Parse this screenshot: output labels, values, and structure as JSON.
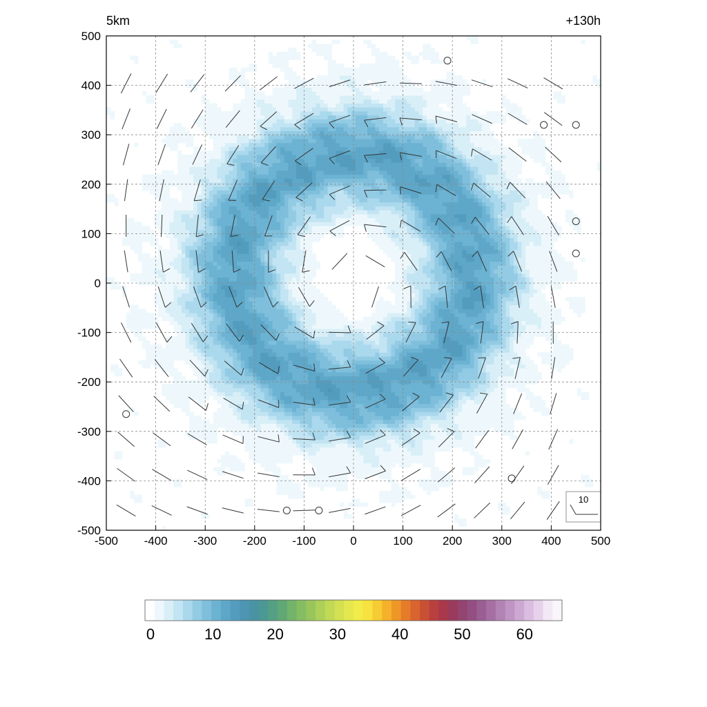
{
  "chart_data": {
    "type": "heatmap",
    "title_left": "5km",
    "title_right": "+130h",
    "xlim": [
      -500,
      500
    ],
    "ylim": [
      -500,
      500
    ],
    "x_ticks": [
      -500,
      -400,
      -300,
      -200,
      -100,
      0,
      100,
      200,
      300,
      400,
      500
    ],
    "y_ticks": [
      -500,
      -400,
      -300,
      -200,
      -100,
      0,
      100,
      200,
      300,
      400,
      500
    ],
    "grid": true,
    "field": {
      "description_type": "annular ring",
      "center": [
        0,
        20
      ],
      "ring_radius": 240,
      "ring_width": 130,
      "peak_value": 13,
      "eye_value": 0
    },
    "wind_barbs": {
      "spacing": 72,
      "reference_value": 10,
      "reference_label": "10"
    },
    "calm_points": [
      [
        190,
        450
      ],
      [
        385,
        320
      ],
      [
        450,
        320
      ],
      [
        450,
        125
      ],
      [
        450,
        60
      ],
      [
        -460,
        -265
      ],
      [
        320,
        -395
      ],
      [
        -135,
        -460
      ],
      [
        -70,
        -460
      ]
    ],
    "colorbar": {
      "min": 0,
      "max": 66,
      "tick_values": [
        0,
        10,
        20,
        30,
        40,
        50,
        60
      ],
      "tick_labels": [
        "0",
        "10",
        "20",
        "30",
        "40",
        "50",
        "60"
      ],
      "colors": [
        "#ffffff",
        "#eef8fc",
        "#d9eff8",
        "#c2e4f3",
        "#aad8ec",
        "#93cbe4",
        "#7fbfdc",
        "#6cb2d2",
        "#5ea7c8",
        "#539cbe",
        "#4c95b3",
        "#4a93a5",
        "#4c9895",
        "#55a085",
        "#62a876",
        "#73b36a",
        "#86bd62",
        "#99c65c",
        "#add059",
        "#c1d955",
        "#d3e051",
        "#e4e84e",
        "#f2ec4a",
        "#f7e23f",
        "#f7cb33",
        "#f5b12a",
        "#ee9726",
        "#e67c29",
        "#da642e",
        "#ca5035",
        "#b8403f",
        "#a8384c",
        "#9a3b5d",
        "#93446f",
        "#944f82",
        "#9a5e93",
        "#a66fa3",
        "#b282b4",
        "#bf95c4",
        "#cca8d2",
        "#dabde0",
        "#e7d2eb",
        "#f3e8f5",
        "#faf5fb"
      ]
    }
  }
}
